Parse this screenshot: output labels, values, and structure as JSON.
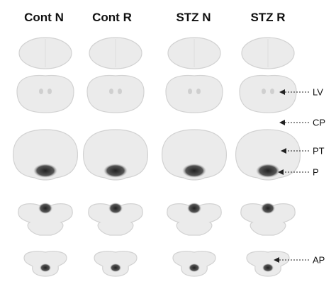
{
  "headers": [
    "Cont N",
    "Cont R",
    "STZ N",
    "STZ R"
  ],
  "labels": [
    "LV",
    "CP",
    "PT",
    "P",
    "AP"
  ]
}
